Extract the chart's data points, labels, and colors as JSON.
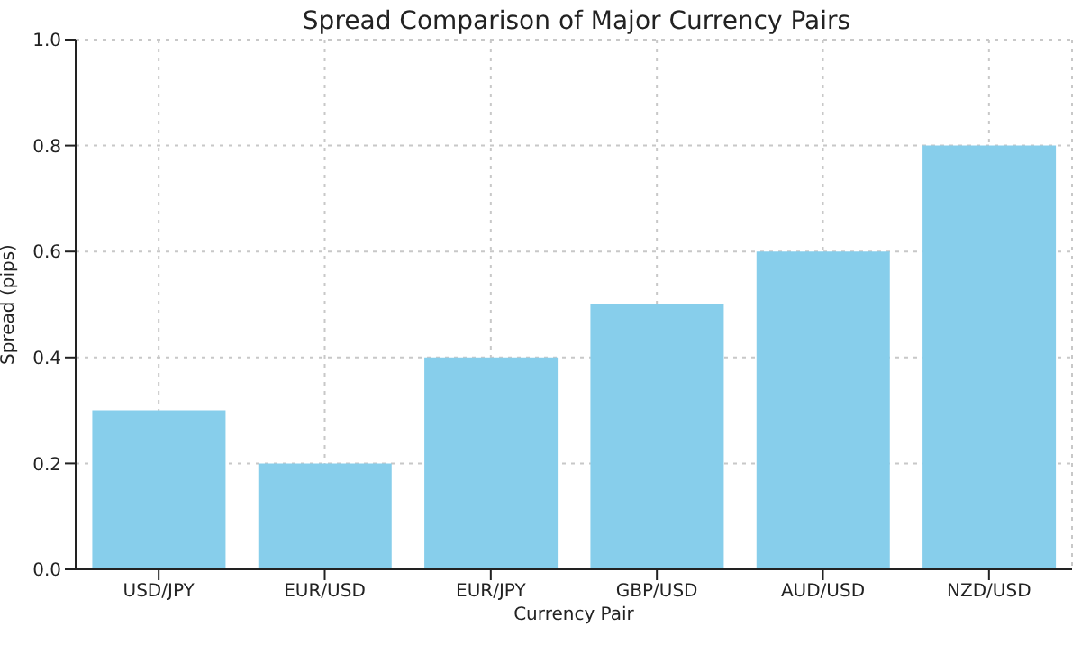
{
  "chart_data": {
    "type": "bar",
    "title": "Spread Comparison of Major Currency Pairs",
    "xlabel": "Currency Pair",
    "ylabel": "Spread (pips)",
    "categories": [
      "USD/JPY",
      "EUR/USD",
      "EUR/JPY",
      "GBP/USD",
      "AUD/USD",
      "NZD/USD"
    ],
    "values": [
      0.3,
      0.2,
      0.4,
      0.5,
      0.6,
      0.8
    ],
    "color": "#87ceeb",
    "ylim": [
      0,
      1
    ],
    "yticks": [
      {
        "value": 0,
        "label": "0.0"
      },
      {
        "value": 0.2,
        "label": "0.2"
      },
      {
        "value": 0.4,
        "label": "0.4"
      },
      {
        "value": 0.6,
        "label": "0.6"
      },
      {
        "value": 0.8,
        "label": "0.8"
      },
      {
        "value": 1,
        "label": "1.0"
      }
    ],
    "grid": true
  }
}
